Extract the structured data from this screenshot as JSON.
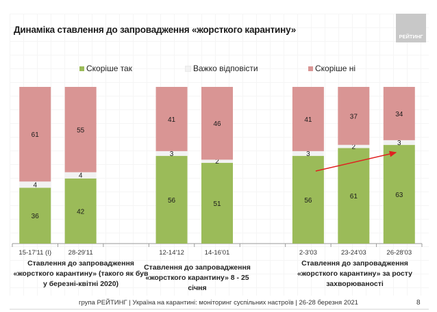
{
  "title": "Динаміка ставлення до запровадження «жорсткого карантину»",
  "logo_text": "РЕЙТИНГ",
  "footer": "група РЕЙТИНГ | Україна на карантині: моніторинг суспільних настроїв | 26-28 березня 2021",
  "page_number": "8",
  "colors": {
    "yes": "#9bbb59",
    "hard": "#f2f2f2",
    "no": "#d99594",
    "arrow": "#e02020"
  },
  "chart_data": {
    "type": "bar",
    "stacked": true,
    "title": "Динаміка ставлення до запровадження «жорсткого карантину»",
    "legend_position": "top",
    "ylim": [
      0,
      100
    ],
    "categories": [
      "15-17'11 (І)",
      "28-29'11",
      "",
      "12-14'12",
      "14-16'01",
      "",
      "2-3'03",
      "23-24'03",
      "26-28'03"
    ],
    "series": [
      {
        "name": "Скоріше так",
        "values": [
          36,
          42,
          null,
          56,
          51,
          null,
          56,
          61,
          63
        ]
      },
      {
        "name": "Важко відповісти",
        "values": [
          4,
          4,
          null,
          3,
          2,
          null,
          3,
          2,
          3
        ]
      },
      {
        "name": "Скоріше ні",
        "values": [
          61,
          55,
          null,
          41,
          46,
          null,
          41,
          37,
          34
        ]
      }
    ],
    "groups": [
      {
        "label_lines": [
          "Ставлення до запровадження",
          "«жорсткого карантину» (такого як був",
          "у березні-квітні 2020)"
        ]
      },
      {
        "label_lines": [
          "Ставлення до запровадження",
          "«жорсткого карантину» 8 - 25 січня"
        ]
      },
      {
        "label_lines": [
          "Ставлення до запровадження",
          "«жорсткого карантину» за росту",
          "захворюваності"
        ]
      }
    ],
    "annotation": {
      "type": "arrow",
      "from_category": "2-3'03",
      "to_category": "26-28'03"
    }
  }
}
